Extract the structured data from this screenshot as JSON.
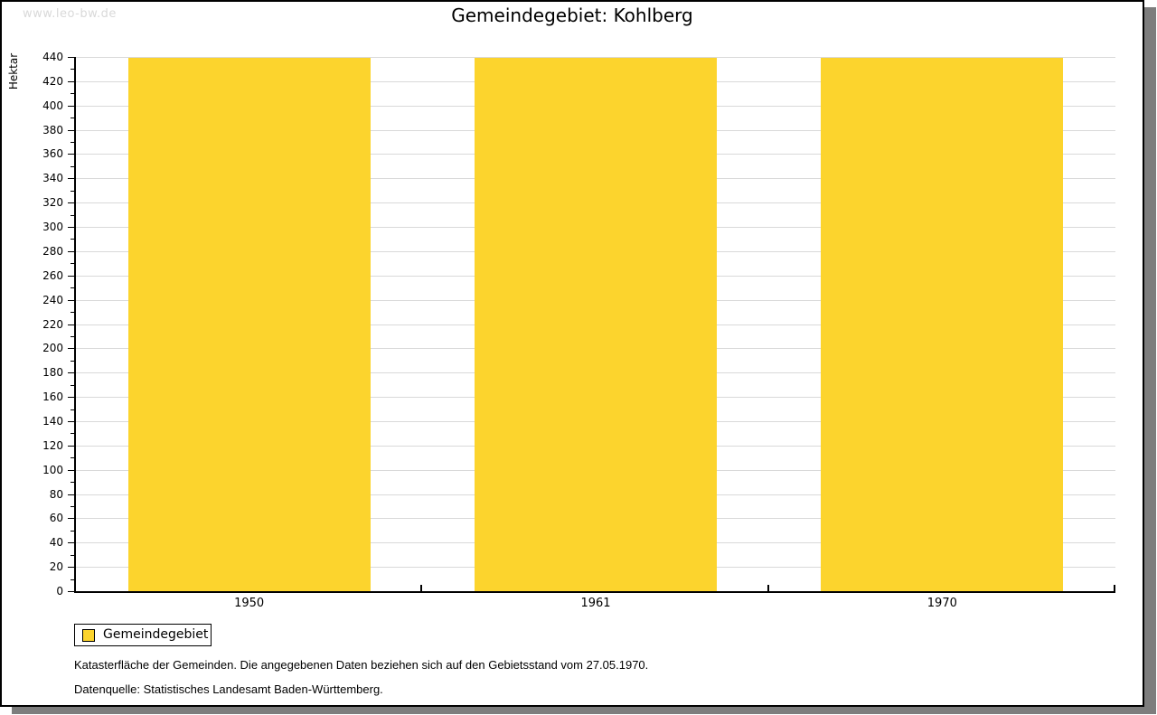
{
  "watermark": "www.leo-bw.de",
  "title": "Gemeindegebiet: Kohlberg",
  "ylabel": "Hektar",
  "legend": {
    "label": "Gemeindegebiet"
  },
  "footer": {
    "line1": "Katasterfläche der Gemeinden. Die angegebenen Daten beziehen sich auf den Gebietsstand vom 27.05.1970.",
    "line2": "Datenquelle: Statistisches Landesamt Baden-Württemberg."
  },
  "colors": {
    "bar": "#fcd42d",
    "grid": "#d9d9d9",
    "axis": "#000000",
    "watermark": "#d9d9d9",
    "shadow": "#7d7d7d"
  },
  "chart_data": {
    "type": "bar",
    "categories": [
      "1950",
      "1961",
      "1970"
    ],
    "series": [
      {
        "name": "Gemeindegebiet",
        "values": [
          439,
          439,
          439
        ]
      }
    ],
    "title": "Gemeindegebiet: Kohlberg",
    "xlabel": "",
    "ylabel": "Hektar",
    "ylim": [
      0,
      440
    ],
    "ytick_step": 20,
    "yminor_step": 10,
    "bar_width_fraction": 0.7,
    "grid": true,
    "legend_position": "bottom-left"
  }
}
